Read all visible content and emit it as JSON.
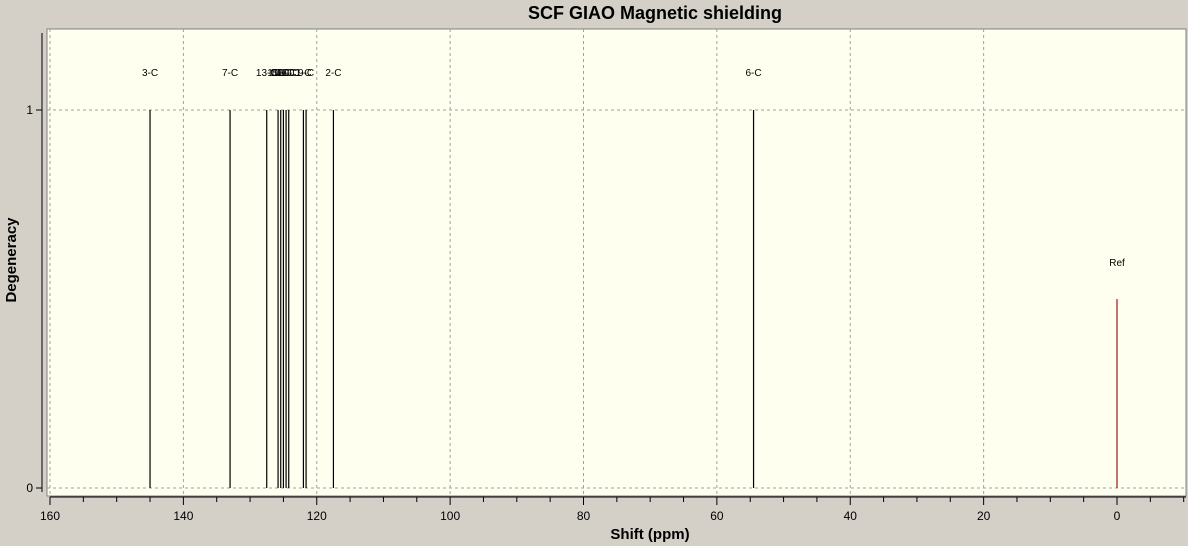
{
  "chart_data": {
    "type": "bar",
    "title": "SCF GIAO Magnetic shielding",
    "xlabel": "Shift (ppm)",
    "ylabel": "Degeneracy",
    "xlim": [
      160,
      -10
    ],
    "ylim": [
      0,
      1.2
    ],
    "x_ticks": [
      160,
      140,
      120,
      100,
      80,
      60,
      40,
      20,
      0
    ],
    "y_ticks": [
      0,
      1
    ],
    "grid": true,
    "peaks": [
      {
        "label": "3-C",
        "x": 145.0,
        "y": 1,
        "show_label": true
      },
      {
        "label": "7-C",
        "x": 133.0,
        "y": 1,
        "show_label": true
      },
      {
        "label": "13-C",
        "x": 127.5,
        "y": 1,
        "show_label": true
      },
      {
        "label": "15-C",
        "x": 125.8,
        "y": 1,
        "show_label": false
      },
      {
        "label": "14-C",
        "x": 125.4,
        "y": 1,
        "show_label": false
      },
      {
        "label": "16-C",
        "x": 125.0,
        "y": 1,
        "show_label": false
      },
      {
        "label": "11-C",
        "x": 124.6,
        "y": 1,
        "show_label": false
      },
      {
        "label": "10-C",
        "x": 124.2,
        "y": 1,
        "show_label": false
      },
      {
        "label": "1-C",
        "x": 122.0,
        "y": 1,
        "show_label": false
      },
      {
        "label": "9-C",
        "x": 121.6,
        "y": 1,
        "show_label": false
      },
      {
        "label": "2-C",
        "x": 117.5,
        "y": 1,
        "show_label": true
      },
      {
        "label": "6-C",
        "x": 54.5,
        "y": 1,
        "show_label": true
      }
    ],
    "reference": {
      "label": "Ref",
      "x": 0,
      "y": 0.5,
      "color": "#a52a2a"
    },
    "colors": {
      "plot_bg": "#fffff0",
      "frame_bg": "#d4d0c8",
      "peak": "#000000",
      "grid": "#a0a0a0"
    }
  }
}
